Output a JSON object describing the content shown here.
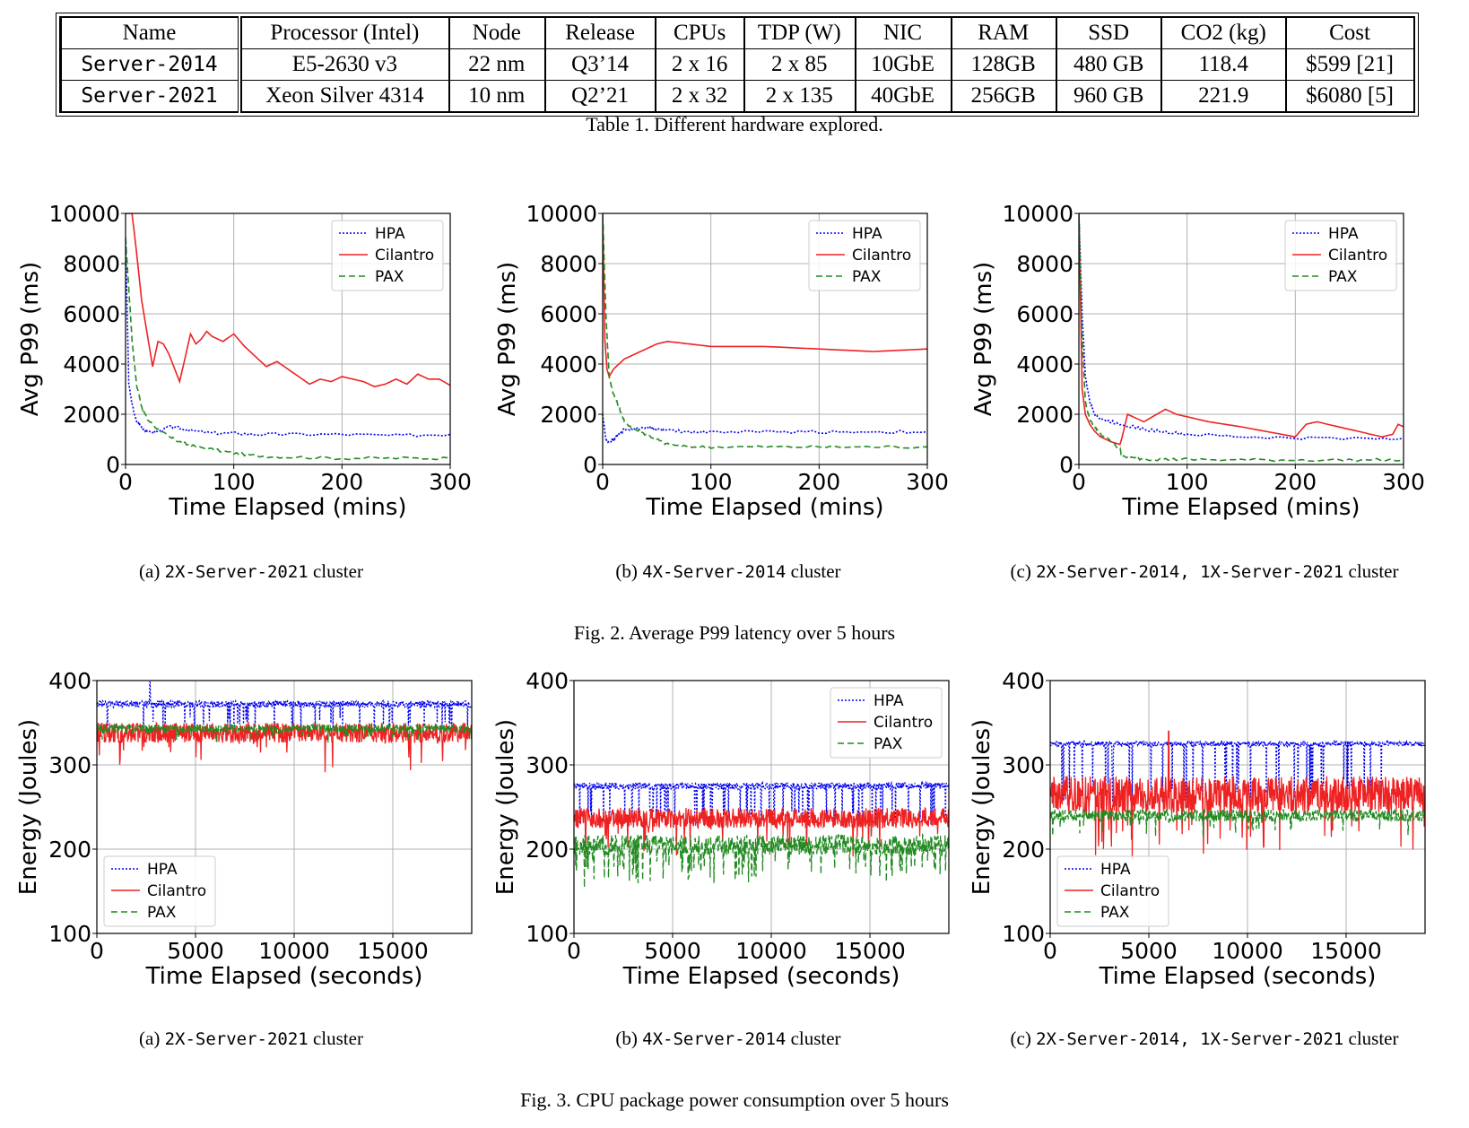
{
  "table": {
    "headers": [
      "Name",
      "Processor (Intel)",
      "Node",
      "Release",
      "CPUs",
      "TDP (W)",
      "NIC",
      "RAM",
      "SSD",
      "CO2 (kg)",
      "Cost"
    ],
    "rows": [
      [
        "Server-2014",
        "E5-2630 v3",
        "22 nm",
        "Q3’14",
        "2 x 16",
        "2 x 85",
        "10GbE",
        "128GB",
        "480 GB",
        "118.4",
        "$599 [21]"
      ],
      [
        "Server-2021",
        "Xeon Silver 4314",
        "10 nm",
        "Q2’21",
        "2 x 32",
        "2 x 135",
        "40GbE",
        "256GB",
        "960 GB",
        "221.9",
        "$6080 [5]"
      ]
    ],
    "caption": "Table 1.  Different hardware explored."
  },
  "fig2": {
    "caption": "Fig. 2.  Average P99 latency over 5 hours",
    "subcaptions": [
      {
        "prefix": "(a) ",
        "mono": "2X-Server-2021",
        "suffix": " cluster"
      },
      {
        "prefix": "(b) ",
        "mono": "4X-Server-2014",
        "suffix": " cluster"
      },
      {
        "prefix": "(c) ",
        "mono": "2X-Server-2014, 1X-Server-2021",
        "suffix": " cluster"
      }
    ]
  },
  "fig3": {
    "caption": "Fig. 3.  CPU package power consumption over 5 hours",
    "subcaptions": [
      {
        "prefix": "(a) ",
        "mono": "2X-Server-2021",
        "suffix": " cluster"
      },
      {
        "prefix": "(b) ",
        "mono": "4X-Server-2014",
        "suffix": " cluster"
      },
      {
        "prefix": "(c) ",
        "mono": "2X-Server-2014, 1X-Server-2021",
        "suffix": " cluster"
      }
    ]
  },
  "colors": {
    "hpa": "#0000ee",
    "cilantro": "#ee2222",
    "pax": "#228b22"
  },
  "chart_data": [
    {
      "type": "line",
      "title": "(a) 2X-Server-2021 cluster",
      "xlabel": "Time Elapsed (mins)",
      "ylabel": "Avg P99 (ms)",
      "xlim": [
        0,
        300
      ],
      "ylim": [
        0,
        10000
      ],
      "xticks": [
        0,
        100,
        200,
        300
      ],
      "yticks": [
        0,
        2000,
        4000,
        6000,
        8000,
        10000
      ],
      "grid": true,
      "legend": "top-right",
      "series": [
        {
          "name": "HPA",
          "style": "dotted",
          "x": [
            0,
            3,
            6,
            10,
            15,
            20,
            30,
            40,
            50,
            60,
            80,
            100,
            120,
            150,
            200,
            250,
            300
          ],
          "y": [
            9000,
            3200,
            2400,
            1700,
            1500,
            1300,
            1300,
            1500,
            1450,
            1350,
            1250,
            1250,
            1200,
            1200,
            1200,
            1150,
            1200
          ]
        },
        {
          "name": "Cilantro",
          "style": "solid",
          "x": [
            0,
            3,
            6,
            10,
            15,
            20,
            25,
            30,
            35,
            40,
            50,
            60,
            65,
            70,
            75,
            80,
            90,
            100,
            110,
            130,
            140,
            150,
            160,
            170,
            180,
            190,
            200,
            210,
            220,
            230,
            240,
            250,
            260,
            270,
            280,
            290,
            300
          ],
          "y": [
            10000,
            10000,
            10000,
            8500,
            6500,
            5200,
            3900,
            4900,
            4800,
            4400,
            3300,
            5200,
            4800,
            5000,
            5300,
            5100,
            4900,
            5200,
            4700,
            3900,
            4100,
            3800,
            3500,
            3200,
            3400,
            3300,
            3500,
            3400,
            3300,
            3100,
            3200,
            3400,
            3200,
            3600,
            3400,
            3400,
            3150
          ]
        },
        {
          "name": "PAX",
          "style": "dashed",
          "x": [
            0,
            3,
            6,
            10,
            15,
            20,
            30,
            40,
            50,
            60,
            80,
            100,
            120,
            150,
            200,
            250,
            300
          ],
          "y": [
            9000,
            7000,
            5000,
            3200,
            2300,
            1800,
            1400,
            1100,
            900,
            750,
            600,
            450,
            350,
            300,
            250,
            250,
            250
          ]
        }
      ]
    },
    {
      "type": "line",
      "title": "(b) 4X-Server-2014 cluster",
      "xlabel": "Time Elapsed (mins)",
      "ylabel": "Avg P99 (ms)",
      "xlim": [
        0,
        300
      ],
      "ylim": [
        0,
        10000
      ],
      "xticks": [
        0,
        100,
        200,
        300
      ],
      "yticks": [
        0,
        2000,
        4000,
        6000,
        8000,
        10000
      ],
      "grid": true,
      "legend": "top-right",
      "series": [
        {
          "name": "HPA",
          "style": "dotted",
          "x": [
            0,
            3,
            6,
            10,
            15,
            20,
            30,
            40,
            50,
            60,
            80,
            100,
            150,
            200,
            250,
            300
          ],
          "y": [
            2000,
            1000,
            900,
            1000,
            1200,
            1400,
            1400,
            1500,
            1400,
            1350,
            1300,
            1300,
            1300,
            1300,
            1300,
            1300
          ]
        },
        {
          "name": "Cilantro",
          "style": "solid",
          "x": [
            0,
            2,
            4,
            6,
            10,
            15,
            20,
            30,
            40,
            50,
            60,
            80,
            100,
            150,
            200,
            250,
            300
          ],
          "y": [
            10000,
            5000,
            3800,
            3500,
            3800,
            4000,
            4200,
            4400,
            4600,
            4800,
            4900,
            4800,
            4700,
            4700,
            4600,
            4500,
            4600
          ]
        },
        {
          "name": "PAX",
          "style": "dashed",
          "x": [
            0,
            3,
            6,
            10,
            15,
            20,
            30,
            40,
            50,
            60,
            80,
            100,
            150,
            200,
            250,
            300
          ],
          "y": [
            10000,
            6000,
            3500,
            2800,
            2300,
            1700,
            1400,
            1200,
            1000,
            800,
            700,
            700,
            700,
            700,
            700,
            700
          ]
        }
      ]
    },
    {
      "type": "line",
      "title": "(c) 2X-Server-2014, 1X-Server-2021 cluster",
      "xlabel": "Time Elapsed (mins)",
      "ylabel": "Avg P99 (ms)",
      "xlim": [
        0,
        300
      ],
      "ylim": [
        0,
        10000
      ],
      "xticks": [
        0,
        100,
        200,
        300
      ],
      "yticks": [
        0,
        2000,
        4000,
        6000,
        8000,
        10000
      ],
      "grid": true,
      "legend": "top-right",
      "series": [
        {
          "name": "HPA",
          "style": "dotted",
          "x": [
            0,
            3,
            6,
            10,
            15,
            20,
            30,
            40,
            50,
            60,
            80,
            100,
            150,
            200,
            250,
            300
          ],
          "y": [
            10000,
            6000,
            3500,
            2500,
            2000,
            1800,
            1700,
            1600,
            1500,
            1400,
            1300,
            1200,
            1100,
            1050,
            1050,
            1050
          ]
        },
        {
          "name": "Cilantro",
          "style": "solid",
          "x": [
            0,
            3,
            6,
            10,
            15,
            20,
            30,
            38,
            40,
            45,
            60,
            80,
            90,
            100,
            120,
            150,
            200,
            210,
            220,
            250,
            280,
            290,
            295,
            300
          ],
          "y": [
            10000,
            3000,
            2000,
            1600,
            1300,
            1100,
            900,
            800,
            1100,
            2000,
            1700,
            2200,
            2000,
            1900,
            1700,
            1500,
            1100,
            1600,
            1700,
            1400,
            1100,
            1200,
            1600,
            1500
          ]
        },
        {
          "name": "PAX",
          "style": "dashed",
          "x": [
            0,
            3,
            6,
            10,
            15,
            20,
            30,
            38,
            40,
            50,
            60,
            80,
            100,
            150,
            200,
            250,
            300
          ],
          "y": [
            10000,
            5000,
            2500,
            1800,
            1500,
            1200,
            900,
            600,
            300,
            250,
            220,
            200,
            200,
            180,
            180,
            180,
            180
          ]
        }
      ]
    },
    {
      "type": "line",
      "title": "(a) 2X-Server-2021 cluster",
      "xlabel": "Time Elapsed (seconds)",
      "ylabel": "Energy (Joules)",
      "xlim": [
        0,
        19000
      ],
      "ylim": [
        100,
        400
      ],
      "xticks": [
        0,
        5000,
        10000,
        15000
      ],
      "yticks": [
        100,
        200,
        300,
        400
      ],
      "grid": true,
      "legend": "bottom-left",
      "series": [
        {
          "name": "HPA",
          "style": "dotted",
          "base": 372,
          "noise": 4,
          "dips": 40,
          "dipDepth": 30,
          "spike": [
            2700,
            398
          ]
        },
        {
          "name": "Cilantro",
          "style": "solid",
          "base": 338,
          "noise": 12,
          "dips": 0,
          "dipDepth": 0
        },
        {
          "name": "PAX",
          "style": "dashed",
          "base": 343,
          "noise": 5,
          "dips": 0,
          "dipDepth": 0
        }
      ]
    },
    {
      "type": "line",
      "title": "(b) 4X-Server-2014 cluster",
      "xlabel": "Time Elapsed (seconds)",
      "ylabel": "Energy (Joules)",
      "xlim": [
        0,
        19000
      ],
      "ylim": [
        100,
        400
      ],
      "xticks": [
        0,
        5000,
        10000,
        15000
      ],
      "yticks": [
        100,
        200,
        300,
        400
      ],
      "grid": true,
      "legend": "top-right",
      "series": [
        {
          "name": "HPA",
          "style": "dotted",
          "base": 275,
          "noise": 4,
          "dips": 60,
          "dipDepth": 45
        },
        {
          "name": "Cilantro",
          "style": "solid",
          "base": 237,
          "noise": 12,
          "dips": 0,
          "dipDepth": 0
        },
        {
          "name": "PAX",
          "style": "dashed",
          "base": 205,
          "noise": 12,
          "dips": 50,
          "dipDepth": 40
        }
      ]
    },
    {
      "type": "line",
      "title": "(c) 2X-Server-2014, 1X-Server-2021 cluster",
      "xlabel": "Time Elapsed (seconds)",
      "ylabel": "Energy (Joules)",
      "xlim": [
        0,
        19000
      ],
      "ylim": [
        100,
        400
      ],
      "xticks": [
        0,
        5000,
        10000,
        15000
      ],
      "yticks": [
        100,
        200,
        300,
        400
      ],
      "grid": true,
      "legend": "bottom-left",
      "series": [
        {
          "name": "HPA",
          "style": "dotted",
          "base": 325,
          "noise": 3,
          "dips": 40,
          "dipDepth": 70
        },
        {
          "name": "Cilantro",
          "style": "solid",
          "base": 265,
          "noise": 22,
          "dips": 0,
          "dipDepth": 0,
          "spike": [
            6000,
            340
          ]
        },
        {
          "name": "PAX",
          "style": "dashed",
          "base": 240,
          "noise": 7,
          "dips": 0,
          "dipDepth": 0
        }
      ]
    }
  ]
}
